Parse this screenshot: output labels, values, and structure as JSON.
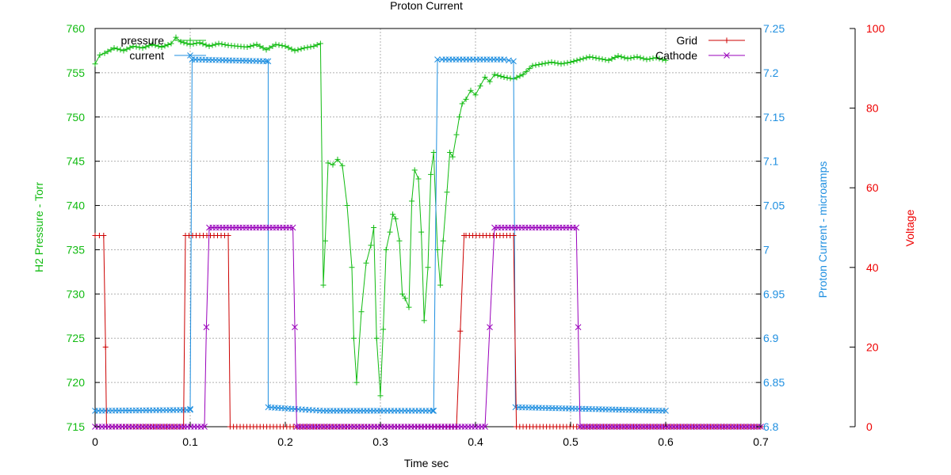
{
  "chart_data": {
    "type": "line",
    "title": "Proton Current",
    "xlabel": "Time sec",
    "ylabel_left": "H2 Pressure - Torr",
    "ylabel_right1": "Proton Current - microamps",
    "ylabel_right2": "Voltage",
    "xlim": [
      0,
      0.7
    ],
    "ylim_pressure": [
      715,
      760
    ],
    "ylim_current": [
      6.8,
      7.25
    ],
    "ylim_voltage": [
      0,
      100
    ],
    "x_ticks": [
      "0",
      "0.1",
      "0.2",
      "0.3",
      "0.4",
      "0.5",
      "0.6",
      "0.7"
    ],
    "pressure_ticks": [
      "715",
      "720",
      "725",
      "730",
      "735",
      "740",
      "745",
      "750",
      "755",
      "760"
    ],
    "current_ticks": [
      "6.8",
      "6.85",
      "6.9",
      "6.95",
      "7",
      "7.05",
      "7.1",
      "7.15",
      "7.2",
      "7.25"
    ],
    "voltage_ticks": [
      "0",
      "20",
      "40",
      "60",
      "80",
      "100"
    ],
    "grid": true,
    "legend_left_position": "top-left",
    "legend_right_position": "top-right",
    "colors": {
      "pressure": "#11bb11",
      "current": "#1f8fe0",
      "grid": "#cc0000",
      "cathode": "#9900bb",
      "axis_pressure": "#11bb11",
      "axis_current": "#1f8fe0",
      "axis_voltage": "#ee0000"
    },
    "series": [
      {
        "name": "pressure",
        "axis": "pressure",
        "marker": "plus",
        "x": [
          0.0,
          0.005,
          0.01,
          0.02,
          0.03,
          0.04,
          0.05,
          0.06,
          0.07,
          0.08,
          0.085,
          0.09,
          0.1,
          0.11,
          0.12,
          0.13,
          0.14,
          0.15,
          0.16,
          0.17,
          0.18,
          0.19,
          0.2,
          0.21,
          0.22,
          0.23,
          0.237,
          0.24,
          0.242,
          0.245,
          0.25,
          0.255,
          0.26,
          0.265,
          0.27,
          0.272,
          0.275,
          0.28,
          0.285,
          0.29,
          0.293,
          0.296,
          0.3,
          0.303,
          0.306,
          0.31,
          0.313,
          0.316,
          0.32,
          0.323,
          0.326,
          0.33,
          0.333,
          0.336,
          0.34,
          0.343,
          0.346,
          0.35,
          0.353,
          0.356,
          0.36,
          0.363,
          0.366,
          0.37,
          0.373,
          0.376,
          0.38,
          0.383,
          0.386,
          0.39,
          0.395,
          0.4,
          0.405,
          0.41,
          0.415,
          0.42,
          0.43,
          0.44,
          0.45,
          0.46,
          0.47,
          0.48,
          0.49,
          0.5,
          0.51,
          0.52,
          0.53,
          0.54,
          0.55,
          0.56,
          0.57,
          0.58,
          0.59,
          0.6
        ],
        "values": [
          756.0,
          757.0,
          757.2,
          757.8,
          757.5,
          758.0,
          757.8,
          758.2,
          757.9,
          758.3,
          759.0,
          758.5,
          758.2,
          758.4,
          758.0,
          758.3,
          758.1,
          758.0,
          757.9,
          758.2,
          757.6,
          758.2,
          758.0,
          757.5,
          757.8,
          758.0,
          758.3,
          731.0,
          736.0,
          744.8,
          744.6,
          745.2,
          744.5,
          740.0,
          733.0,
          725.0,
          720.0,
          728.0,
          733.5,
          735.5,
          737.5,
          725.0,
          718.5,
          726.0,
          735.0,
          737.0,
          739.0,
          738.5,
          736.0,
          730.0,
          729.5,
          728.5,
          740.5,
          744.0,
          743.0,
          737.0,
          727.0,
          733.0,
          743.5,
          746.0,
          735.0,
          731.0,
          736.0,
          741.5,
          746.0,
          745.5,
          748.0,
          750.0,
          751.5,
          752.0,
          753.0,
          752.5,
          753.5,
          754.5,
          754.0,
          754.8,
          754.5,
          754.3,
          754.8,
          755.8,
          756.0,
          756.2,
          756.0,
          756.2,
          756.5,
          756.8,
          756.6,
          756.4,
          756.9,
          756.6,
          756.8,
          756.5,
          756.7,
          756.4
        ]
      },
      {
        "name": "current",
        "axis": "current",
        "marker": "x",
        "x": [
          0.0,
          0.1,
          0.1,
          0.102,
          0.18,
          0.182,
          0.182,
          0.21,
          0.24,
          0.3,
          0.355,
          0.356,
          0.36,
          0.365,
          0.43,
          0.44,
          0.442,
          0.6
        ],
        "values": [
          6.818,
          6.819,
          6.82,
          7.215,
          7.213,
          7.213,
          6.822,
          6.82,
          6.818,
          6.818,
          6.818,
          6.818,
          7.215,
          7.215,
          7.215,
          7.213,
          6.822,
          6.818
        ]
      },
      {
        "name": "Grid",
        "axis": "voltage",
        "marker": "plus",
        "x": [
          0.0,
          0.009,
          0.011,
          0.012,
          0.093,
          0.095,
          0.14,
          0.142,
          0.38,
          0.388,
          0.39,
          0.44,
          0.443,
          0.7
        ],
        "values": [
          48.0,
          48.0,
          20.0,
          0.0,
          0.0,
          48.0,
          48.0,
          0.0,
          0.0,
          48.0,
          48.0,
          48.0,
          0.0,
          0.0
        ]
      },
      {
        "name": "Cathode",
        "axis": "voltage",
        "marker": "x",
        "x": [
          0.0,
          0.115,
          0.117,
          0.12,
          0.208,
          0.21,
          0.212,
          0.41,
          0.415,
          0.42,
          0.506,
          0.508,
          0.51,
          0.7
        ],
        "values": [
          0.0,
          0.0,
          25.0,
          50.0,
          50.0,
          25.0,
          0.0,
          0.0,
          25.0,
          50.0,
          50.0,
          25.0,
          0.0,
          0.0
        ]
      }
    ]
  }
}
